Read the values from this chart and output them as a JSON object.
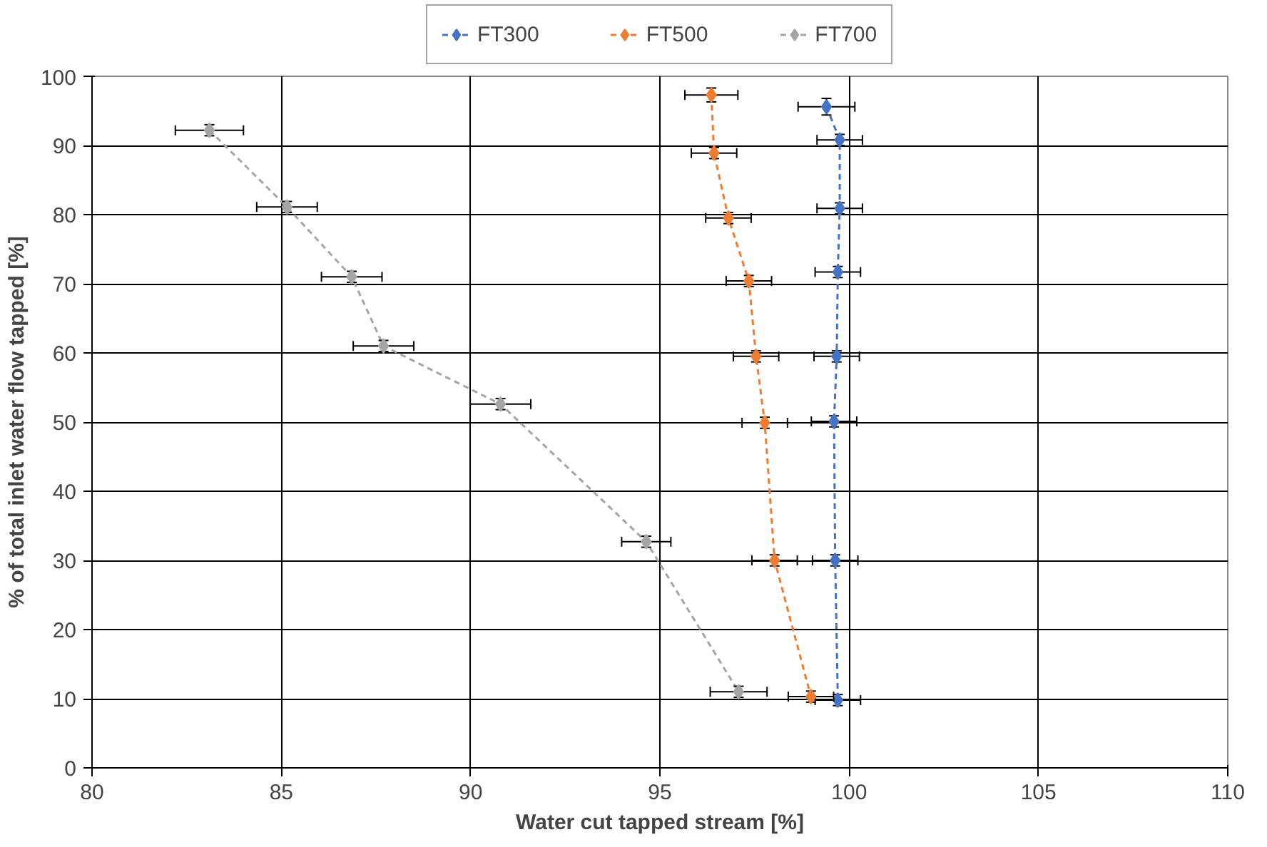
{
  "chart_data": {
    "type": "line",
    "xlabel": "Water cut tapped stream [%]",
    "ylabel": "% of total inlet water flow tapped [%]",
    "xlim": [
      80,
      110
    ],
    "ylim": [
      0,
      100
    ],
    "xticks": [
      80,
      85,
      90,
      95,
      100,
      105,
      110
    ],
    "yticks": [
      0,
      10,
      20,
      30,
      40,
      50,
      60,
      70,
      80,
      90,
      100
    ],
    "grid": true,
    "legend": "top",
    "marker": "diamond",
    "line_style": "dashed",
    "series": [
      {
        "name": "FT300",
        "color": "#4472c4",
        "x": [
          99.4,
          99.75,
          99.75,
          99.7,
          99.67,
          99.6,
          99.63,
          99.7
        ],
        "values": [
          95.6,
          90.8,
          80.9,
          71.7,
          59.5,
          50.1,
          30.0,
          9.8
        ],
        "xerrors": [
          0.75,
          0.6,
          0.6,
          0.6,
          0.6,
          0.6,
          0.6,
          0.6
        ],
        "errors": [
          1.2,
          0.8,
          0.8,
          0.8,
          0.8,
          0.8,
          0.8,
          0.8
        ]
      },
      {
        "name": "FT500",
        "color": "#ed7d31",
        "x": [
          96.36,
          96.43,
          96.81,
          97.35,
          97.54,
          97.77,
          98.03,
          98.99
        ],
        "values": [
          97.3,
          88.9,
          79.5,
          70.4,
          59.5,
          49.9,
          30.0,
          10.3
        ],
        "xerrors": [
          0.7,
          0.6,
          0.6,
          0.6,
          0.6,
          0.6,
          0.6,
          0.6
        ],
        "errors": [
          1.0,
          0.8,
          0.8,
          0.8,
          0.8,
          0.8,
          0.8,
          0.8
        ]
      },
      {
        "name": "FT700",
        "color": "#a5a5a5",
        "x": [
          83.1,
          85.15,
          86.86,
          87.7,
          90.79,
          94.64,
          97.08
        ],
        "values": [
          92.2,
          81.1,
          71.0,
          61.0,
          52.6,
          32.7,
          11.0
        ],
        "xerrors": [
          0.9,
          0.8,
          0.8,
          0.8,
          0.8,
          0.65,
          0.75
        ],
        "errors": [
          0.8,
          0.8,
          0.8,
          0.8,
          0.8,
          0.8,
          0.8
        ]
      }
    ]
  }
}
